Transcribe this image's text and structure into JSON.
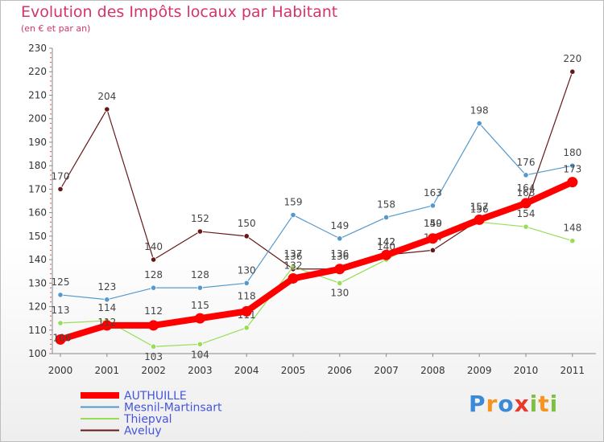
{
  "chart_data": {
    "type": "line",
    "title": "Evolution des Impôts locaux par Habitant",
    "subtitle": "(en € et par an)",
    "xlabel": "",
    "ylabel": "",
    "categories": [
      "2000",
      "2001",
      "2002",
      "2003",
      "2004",
      "2005",
      "2006",
      "2007",
      "2008",
      "2009",
      "2010",
      "2011"
    ],
    "ylim": [
      100,
      230
    ],
    "yticks": [
      100,
      110,
      120,
      130,
      140,
      150,
      160,
      170,
      180,
      190,
      200,
      210,
      220,
      230
    ],
    "grid": false,
    "series": [
      {
        "name": "AUTHUILLE",
        "color": "#ff0000",
        "values": [
          106,
          112,
          112,
          115,
          118,
          132,
          136,
          142,
          149,
          157,
          164,
          173
        ]
      },
      {
        "name": "Mesnil-Martinsart",
        "color": "#5599cc",
        "values": [
          125,
          123,
          128,
          128,
          130,
          159,
          149,
          158,
          163,
          198,
          176,
          180
        ]
      },
      {
        "name": "Thiepval",
        "color": "#99dd55",
        "values": [
          113,
          114,
          103,
          104,
          111,
          137,
          130,
          140,
          150,
          156,
          154,
          148
        ]
      },
      {
        "name": "Aveluy",
        "color": "#661818",
        "values": [
          170,
          204,
          140,
          152,
          150,
          136,
          136,
          142,
          144,
          157,
          163,
          220
        ]
      }
    ]
  },
  "logo": {
    "letters": [
      "P",
      "r",
      "o",
      "x",
      "i",
      "t",
      "i"
    ],
    "colors": [
      "#3b8ad8",
      "#f7941d",
      "#3b8ad8",
      "#e8392a",
      "#7cc242",
      "#f7941d",
      "#7cc242"
    ]
  }
}
